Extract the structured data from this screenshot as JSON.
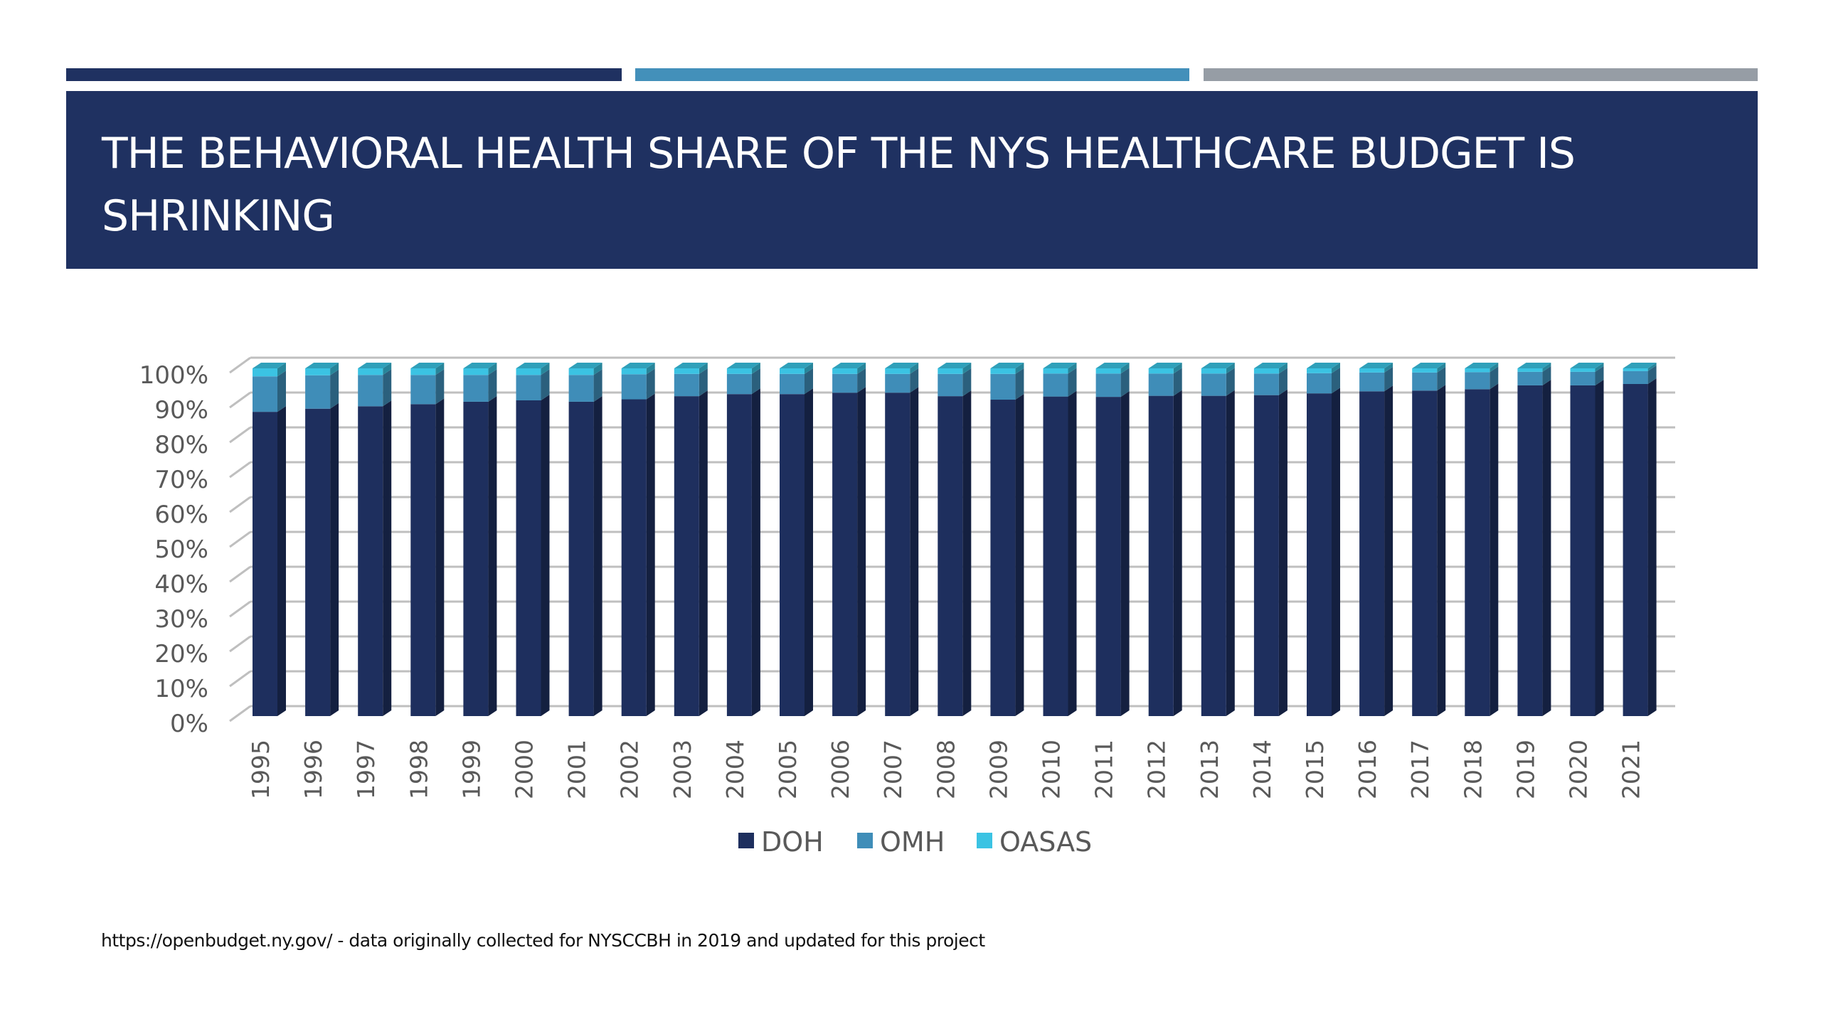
{
  "slide": {
    "title": "The Behavioral Health Share of the NYS Healthcare Budget is Shrinking",
    "accent_colors": [
      "#1F3161",
      "#4390BA",
      "#969DA5"
    ],
    "footnote": "https://openbudget.ny.gov/ - data originally collected for NYSCCBH in 2019 and updated for this project"
  },
  "chart_data": {
    "type": "bar",
    "subtype": "3d-stacked-100-percent",
    "title": "",
    "xlabel": "",
    "ylabel": "",
    "ylim": [
      0,
      100
    ],
    "y_ticks": [
      "0%",
      "10%",
      "20%",
      "30%",
      "40%",
      "50%",
      "60%",
      "70%",
      "80%",
      "90%",
      "100%"
    ],
    "grid": true,
    "legend_position": "bottom",
    "categories": [
      "1995",
      "1996",
      "1997",
      "1998",
      "1999",
      "2000",
      "2001",
      "2002",
      "2003",
      "2004",
      "2005",
      "2006",
      "2007",
      "2008",
      "2009",
      "2010",
      "2011",
      "2012",
      "2013",
      "2014",
      "2015",
      "2016",
      "2017",
      "2018",
      "2019",
      "2020",
      "2021"
    ],
    "series": [
      {
        "name": "DOH",
        "color": "#1E2F5E",
        "values": [
          87.5,
          88.4,
          89.1,
          89.7,
          90.4,
          90.8,
          90.4,
          91.1,
          92.0,
          92.6,
          92.6,
          93.0,
          93.0,
          92.0,
          91.0,
          91.9,
          91.8,
          92.1,
          92.1,
          92.3,
          92.8,
          93.4,
          93.6,
          94.0,
          95.1,
          95.1,
          95.5
        ]
      },
      {
        "name": "OMH",
        "color": "#3F8DB8",
        "values": [
          10.2,
          9.6,
          9.0,
          8.4,
          7.7,
          7.3,
          7.7,
          7.2,
          6.4,
          5.8,
          5.8,
          5.4,
          5.4,
          6.4,
          7.4,
          6.6,
          6.7,
          6.4,
          6.4,
          6.2,
          5.8,
          5.4,
          5.2,
          4.9,
          3.9,
          3.9,
          3.7
        ]
      },
      {
        "name": "OASAS",
        "color": "#3BC3E3",
        "values": [
          2.3,
          2.0,
          1.9,
          1.9,
          1.9,
          1.9,
          1.9,
          1.7,
          1.6,
          1.6,
          1.6,
          1.6,
          1.6,
          1.6,
          1.6,
          1.5,
          1.5,
          1.5,
          1.5,
          1.5,
          1.4,
          1.2,
          1.2,
          1.1,
          1.0,
          1.0,
          0.8
        ]
      }
    ]
  }
}
